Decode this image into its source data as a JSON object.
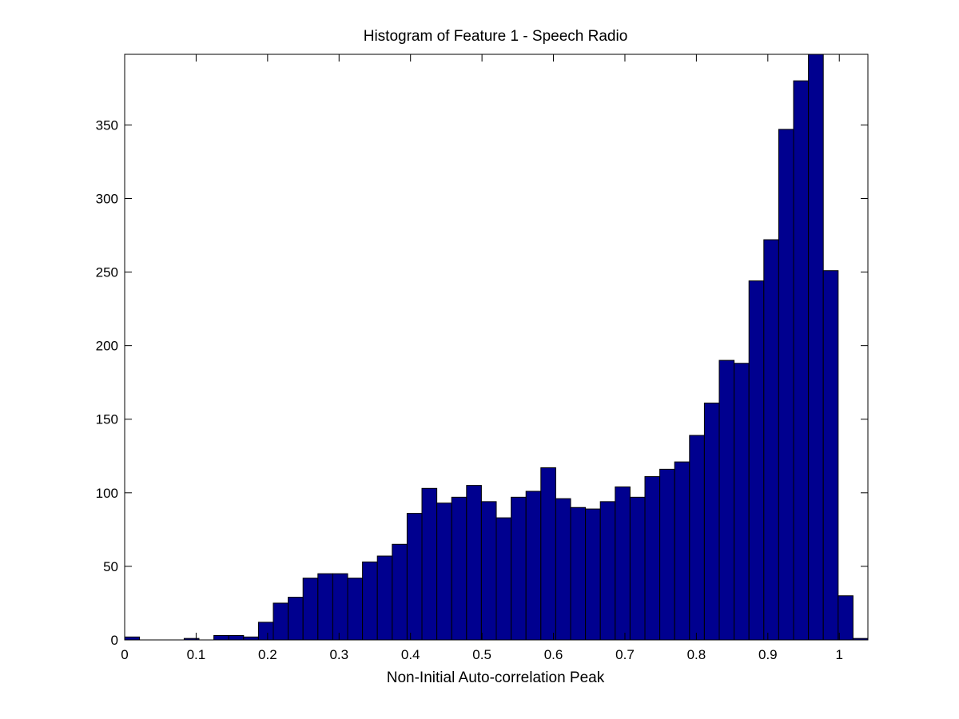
{
  "chart_data": {
    "type": "bar",
    "title": "Histogram of Feature 1 - Speech Radio",
    "xlabel": "Non-Initial Auto-correlation Peak",
    "ylabel": "",
    "xlim": [
      0,
      1.04
    ],
    "ylim": [
      0,
      398
    ],
    "bin_width": 0.0208,
    "x": [
      0.0104,
      0.0312,
      0.052,
      0.0728,
      0.0936,
      0.1144,
      0.1352,
      0.156,
      0.1768,
      0.1976,
      0.2184,
      0.2392,
      0.26,
      0.2808,
      0.3016,
      0.3224,
      0.3432,
      0.364,
      0.3848,
      0.4056,
      0.4264,
      0.4472,
      0.468,
      0.4888,
      0.5096,
      0.5304,
      0.5512,
      0.572,
      0.5928,
      0.6136,
      0.6344,
      0.6552,
      0.676,
      0.6968,
      0.7176,
      0.7384,
      0.7592,
      0.78,
      0.8008,
      0.8216,
      0.8424,
      0.8632,
      0.884,
      0.9048,
      0.9256,
      0.9464,
      0.9672,
      0.988,
      1.0088,
      1.0296
    ],
    "values": [
      2,
      0,
      0,
      0,
      1,
      0,
      3,
      3,
      2,
      12,
      25,
      29,
      42,
      45,
      45,
      42,
      53,
      57,
      65,
      86,
      103,
      93,
      97,
      105,
      94,
      83,
      97,
      101,
      117,
      96,
      90,
      89,
      94,
      104,
      97,
      111,
      116,
      121,
      139,
      161,
      190,
      188,
      244,
      272,
      347,
      380,
      398,
      251,
      30,
      1
    ],
    "xticks": [
      0,
      0.1,
      0.2,
      0.3,
      0.4,
      0.5,
      0.6,
      0.7,
      0.8,
      0.9,
      1
    ],
    "xtick_labels": [
      "0",
      "0.1",
      "0.2",
      "0.3",
      "0.4",
      "0.5",
      "0.6",
      "0.7",
      "0.8",
      "0.9",
      "1"
    ],
    "yticks": [
      0,
      50,
      100,
      150,
      200,
      250,
      300,
      350
    ],
    "ytick_labels": [
      "0",
      "50",
      "100",
      "150",
      "200",
      "250",
      "300",
      "350"
    ],
    "bar_color": "#00008f",
    "edge_color": "#000000",
    "grid": false,
    "legend": "none"
  }
}
